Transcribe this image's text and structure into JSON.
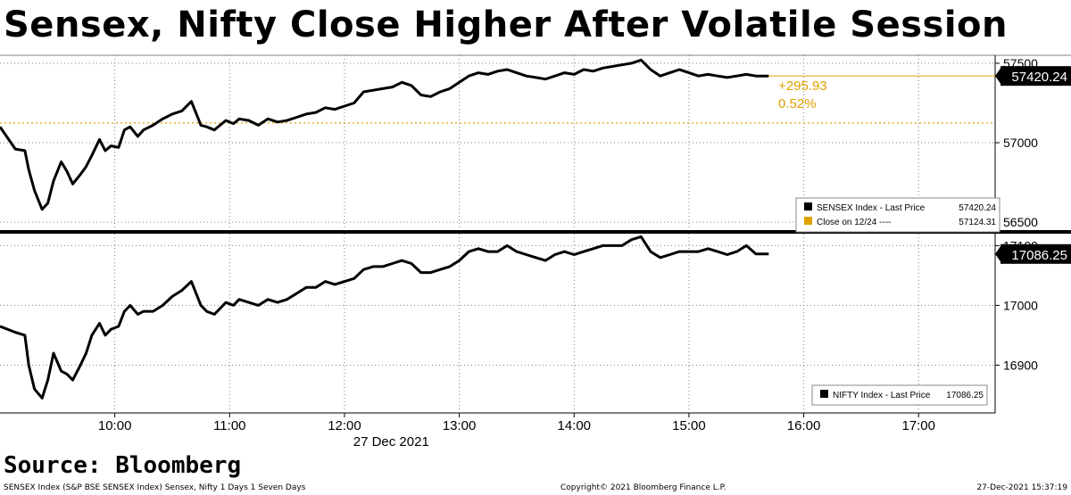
{
  "title": "Sensex, Nifty Close Higher After Volatile Session",
  "source": "Source: Bloomberg",
  "footer": {
    "left": "SENSEX Index (S&P BSE SENSEX Index) Sensex, Nifty 1 Days 1 Seven Days",
    "center": "Copyright© 2021 Bloomberg Finance L.P.",
    "right": "27-Dec-2021 15:37:19"
  },
  "colors": {
    "line": "#000000",
    "prev_close": "#e0a000",
    "grid": "#808080",
    "background": "#ffffff"
  },
  "chart_data": [
    {
      "type": "line",
      "panel": "top",
      "xlabel": "27 Dec 2021",
      "x_ticks": [
        "10:00",
        "11:00",
        "12:00",
        "13:00",
        "14:00",
        "15:00",
        "16:00",
        "17:00"
      ],
      "xlim": [
        "09:00",
        "17:40"
      ],
      "ylim": [
        56450,
        57550
      ],
      "y_ticks": [
        56500,
        57000,
        57500
      ],
      "grid": true,
      "last_value_label": "57420.24",
      "change_label": "+295.93",
      "change_pct_label": "0.52%",
      "reference_line": {
        "name": "Close on 12/24",
        "value": 57124.31
      },
      "legend": {
        "placement": "bottom-right",
        "entries": [
          {
            "name": "SENSEX Index - Last Price",
            "value": "57420.24",
            "color": "#000000",
            "style": "solid"
          },
          {
            "name": "Close on 12/24 ----",
            "value": "57124.31",
            "color": "#e0a000",
            "style": "dashed"
          }
        ]
      },
      "series": [
        {
          "name": "SENSEX Index - Last Price",
          "x": [
            "09:00",
            "09:08",
            "09:13",
            "09:15",
            "09:18",
            "09:22",
            "09:25",
            "09:28",
            "09:32",
            "09:35",
            "09:38",
            "09:42",
            "09:45",
            "09:48",
            "09:52",
            "09:55",
            "09:58",
            "10:02",
            "10:05",
            "10:08",
            "10:12",
            "10:15",
            "10:20",
            "10:25",
            "10:30",
            "10:35",
            "10:40",
            "10:45",
            "10:48",
            "10:52",
            "10:55",
            "10:58",
            "11:02",
            "11:05",
            "11:10",
            "11:15",
            "11:20",
            "11:25",
            "11:30",
            "11:35",
            "11:40",
            "11:45",
            "11:50",
            "11:55",
            "12:00",
            "12:05",
            "12:10",
            "12:15",
            "12:20",
            "12:25",
            "12:30",
            "12:35",
            "12:40",
            "12:45",
            "12:50",
            "12:55",
            "13:00",
            "13:05",
            "13:10",
            "13:15",
            "13:20",
            "13:25",
            "13:30",
            "13:35",
            "13:40",
            "13:45",
            "13:50",
            "13:55",
            "14:00",
            "14:05",
            "14:10",
            "14:15",
            "14:20",
            "14:25",
            "14:30",
            "14:35",
            "14:40",
            "14:45",
            "14:50",
            "14:55",
            "15:00",
            "15:05",
            "15:10",
            "15:15",
            "15:20",
            "15:25",
            "15:30",
            "15:35",
            "15:37"
          ],
          "y": [
            57100,
            56960,
            56950,
            56830,
            56700,
            56580,
            56620,
            56760,
            56880,
            56820,
            56740,
            56800,
            56850,
            56920,
            57020,
            56950,
            56980,
            56970,
            57080,
            57100,
            57040,
            57080,
            57110,
            57150,
            57180,
            57200,
            57260,
            57110,
            57100,
            57080,
            57110,
            57140,
            57120,
            57150,
            57140,
            57110,
            57150,
            57130,
            57140,
            57160,
            57180,
            57190,
            57220,
            57210,
            57230,
            57250,
            57320,
            57330,
            57340,
            57350,
            57380,
            57360,
            57300,
            57290,
            57320,
            57340,
            57380,
            57420,
            57440,
            57430,
            57450,
            57460,
            57440,
            57420,
            57410,
            57400,
            57420,
            57440,
            57430,
            57460,
            57450,
            57470,
            57480,
            57490,
            57500,
            57520,
            57460,
            57420,
            57440,
            57460,
            57440,
            57420,
            57430,
            57420,
            57410,
            57420,
            57430,
            57420,
            57420
          ]
        }
      ]
    },
    {
      "type": "line",
      "panel": "bottom",
      "xlabel": "",
      "x_ticks": [
        "10:00",
        "11:00",
        "12:00",
        "13:00",
        "14:00",
        "15:00",
        "16:00",
        "17:00"
      ],
      "xlim": [
        "09:00",
        "17:40"
      ],
      "ylim": [
        16820,
        17120
      ],
      "y_ticks": [
        16900,
        17000,
        17100
      ],
      "grid": true,
      "last_value_label": "17086.25",
      "legend": {
        "placement": "bottom-right",
        "entries": [
          {
            "name": "NIFTY Index - Last Price",
            "value": "17086.25",
            "color": "#000000",
            "style": "solid"
          }
        ]
      },
      "series": [
        {
          "name": "NIFTY Index - Last Price",
          "x": [
            "09:00",
            "09:08",
            "09:13",
            "09:15",
            "09:18",
            "09:22",
            "09:25",
            "09:28",
            "09:32",
            "09:35",
            "09:38",
            "09:42",
            "09:45",
            "09:48",
            "09:52",
            "09:55",
            "09:58",
            "10:02",
            "10:05",
            "10:08",
            "10:12",
            "10:15",
            "10:20",
            "10:25",
            "10:30",
            "10:35",
            "10:40",
            "10:45",
            "10:48",
            "10:52",
            "10:55",
            "10:58",
            "11:02",
            "11:05",
            "11:10",
            "11:15",
            "11:20",
            "11:25",
            "11:30",
            "11:35",
            "11:40",
            "11:45",
            "11:50",
            "11:55",
            "12:00",
            "12:05",
            "12:10",
            "12:15",
            "12:20",
            "12:25",
            "12:30",
            "12:35",
            "12:40",
            "12:45",
            "12:50",
            "12:55",
            "13:00",
            "13:05",
            "13:10",
            "13:15",
            "13:20",
            "13:25",
            "13:30",
            "13:35",
            "13:40",
            "13:45",
            "13:50",
            "13:55",
            "14:00",
            "14:05",
            "14:10",
            "14:15",
            "14:20",
            "14:25",
            "14:30",
            "14:35",
            "14:40",
            "14:45",
            "14:50",
            "14:55",
            "15:00",
            "15:05",
            "15:10",
            "15:15",
            "15:20",
            "15:25",
            "15:30",
            "15:35",
            "15:37"
          ],
          "y": [
            16965,
            16955,
            16950,
            16900,
            16860,
            16845,
            16875,
            16920,
            16890,
            16885,
            16875,
            16900,
            16920,
            16950,
            16970,
            16950,
            16960,
            16965,
            16990,
            17000,
            16985,
            16990,
            16990,
            17000,
            17015,
            17025,
            17040,
            17000,
            16990,
            16985,
            16995,
            17005,
            17000,
            17010,
            17005,
            17000,
            17010,
            17005,
            17010,
            17020,
            17030,
            17030,
            17040,
            17035,
            17040,
            17045,
            17060,
            17065,
            17065,
            17070,
            17075,
            17070,
            17055,
            17055,
            17060,
            17065,
            17075,
            17090,
            17095,
            17090,
            17090,
            17100,
            17090,
            17085,
            17080,
            17075,
            17085,
            17090,
            17085,
            17090,
            17095,
            17100,
            17100,
            17100,
            17110,
            17115,
            17090,
            17080,
            17085,
            17090,
            17090,
            17090,
            17095,
            17090,
            17085,
            17090,
            17100,
            17086,
            17086
          ]
        }
      ]
    }
  ]
}
